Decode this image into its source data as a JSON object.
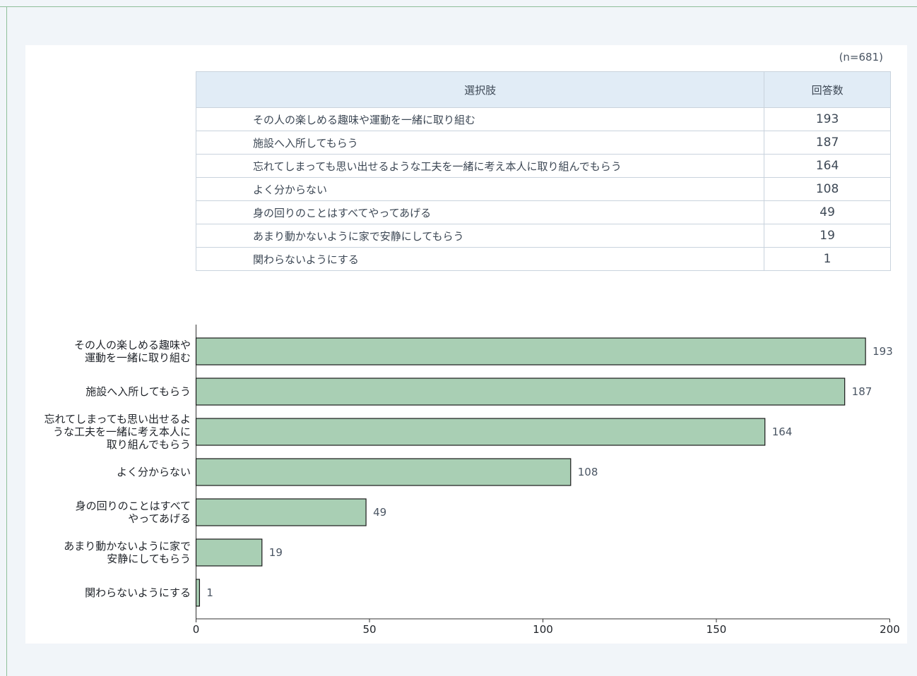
{
  "table": {
    "n_label": "(n=681)",
    "headers": [
      "選択肢",
      "回答数"
    ],
    "rows": [
      {
        "option": "その人の楽しめる趣味や運動を一緒に取り組む",
        "count": "193"
      },
      {
        "option": "施設へ入所してもらう",
        "count": "187"
      },
      {
        "option": "忘れてしまっても思い出せるような工夫を一緒に考え本人に取り組んでもらう",
        "count": "164"
      },
      {
        "option": "よく分からない",
        "count": "108"
      },
      {
        "option": "身の回りのことはすべてやってあげる",
        "count": "49"
      },
      {
        "option": "あまり動かないように家で安静にしてもらう",
        "count": "19"
      },
      {
        "option": "関わらないようにする",
        "count": "1"
      }
    ]
  },
  "chart_data": {
    "type": "bar",
    "orientation": "horizontal",
    "categories": [
      [
        "その人の楽しめる趣味や",
        "運動を一緒に取り組む"
      ],
      [
        "施設へ入所してもらう"
      ],
      [
        "忘れてしまっても思い出せるよ",
        "うな工夫を一緒に考え本人に",
        "取り組んでもらう"
      ],
      [
        "よく分からない"
      ],
      [
        "身の回りのことはすべて",
        "やってあげる"
      ],
      [
        "あまり動かないように家で",
        "安静にしてもらう"
      ],
      [
        "関わらないようにする"
      ]
    ],
    "values": [
      193,
      187,
      164,
      108,
      49,
      19,
      1
    ],
    "xlim": [
      0,
      200
    ],
    "xticks": [
      0,
      50,
      100,
      150,
      200
    ],
    "bar_color": "#a9cfb4",
    "bar_edge_color": "#1a1a1a",
    "grid": false,
    "legend": "none"
  }
}
